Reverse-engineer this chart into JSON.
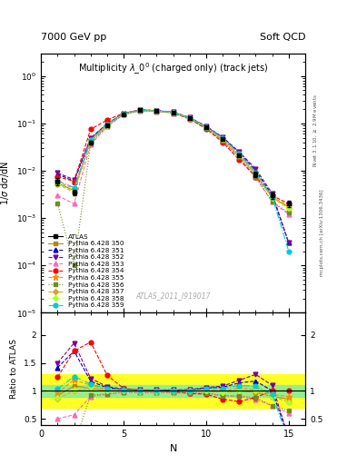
{
  "title_top": "7000 GeV pp",
  "title_right": "Soft QCD",
  "main_title": "Multiplicity $\\lambda\\_0^0$ (charged only) (track jets)",
  "ylabel_main": "1/$\\sigma$ d$\\sigma$/dN",
  "ylabel_ratio": "Ratio to ATLAS",
  "xlabel": "N",
  "watermark": "ATLAS_2011_I919017",
  "right_label": "mcplots.cern.ch [arXiv:1306.3436]",
  "right_label2": "Rivet 3.1.10, $\\geq$ 2.9M events",
  "xlim": [
    0.5,
    16
  ],
  "ylim_main": [
    1e-05,
    3
  ],
  "ylim_ratio": [
    0.38,
    2.4
  ],
  "N_values": [
    1,
    2,
    3,
    4,
    5,
    6,
    7,
    8,
    9,
    10,
    11,
    12,
    13,
    14,
    15
  ],
  "atlas_data": {
    "label": "ATLAS",
    "color": "black",
    "marker": "s",
    "y": [
      0.006,
      0.0035,
      0.04,
      0.092,
      0.158,
      0.19,
      0.185,
      0.17,
      0.13,
      0.082,
      0.047,
      0.021,
      0.0085,
      0.003,
      0.002
    ],
    "yerr": [
      0.001,
      0.0005,
      0.003,
      0.005,
      0.007,
      0.008,
      0.008,
      0.007,
      0.006,
      0.004,
      0.003,
      0.002,
      0.001,
      0.0005,
      0.0003
    ]
  },
  "series": [
    {
      "label": "Pythia 6.428 350",
      "color": "#b8860b",
      "linestyle": "-",
      "marker": "s",
      "markersize": 3.5,
      "y": [
        0.0055,
        0.0038,
        0.042,
        0.093,
        0.159,
        0.189,
        0.184,
        0.169,
        0.129,
        0.082,
        0.046,
        0.021,
        0.0083,
        0.0027,
        0.0017
      ]
    },
    {
      "label": "Pythia 6.428 351",
      "color": "#0000cd",
      "linestyle": "--",
      "marker": "^",
      "markersize": 3.5,
      "y": [
        0.0085,
        0.006,
        0.047,
        0.097,
        0.162,
        0.192,
        0.187,
        0.172,
        0.132,
        0.086,
        0.05,
        0.024,
        0.01,
        0.003,
        0.0003
      ]
    },
    {
      "label": "Pythia 6.428 352",
      "color": "#7b0099",
      "linestyle": "--",
      "marker": "v",
      "markersize": 3.5,
      "y": [
        0.009,
        0.0065,
        0.049,
        0.099,
        0.163,
        0.193,
        0.188,
        0.173,
        0.133,
        0.087,
        0.051,
        0.025,
        0.011,
        0.0033,
        0.0003
      ]
    },
    {
      "label": "Pythia 6.428 353",
      "color": "#ff69b4",
      "linestyle": "--",
      "marker": "^",
      "markersize": 3.5,
      "y": [
        0.003,
        0.002,
        0.036,
        0.086,
        0.154,
        0.184,
        0.18,
        0.165,
        0.125,
        0.078,
        0.043,
        0.019,
        0.0072,
        0.0022,
        0.0012
      ]
    },
    {
      "label": "Pythia 6.428 354",
      "color": "#ff0000",
      "linestyle": "--",
      "marker": "o",
      "markersize": 3.5,
      "y": [
        0.0075,
        0.006,
        0.075,
        0.118,
        0.165,
        0.192,
        0.185,
        0.168,
        0.124,
        0.077,
        0.04,
        0.017,
        0.0075,
        0.003,
        0.002
      ]
    },
    {
      "label": "Pythia 6.428 355",
      "color": "#ff8c00",
      "linestyle": "--",
      "marker": "*",
      "markersize": 4.5,
      "y": [
        0.0058,
        0.0042,
        0.044,
        0.094,
        0.16,
        0.19,
        0.185,
        0.17,
        0.13,
        0.083,
        0.047,
        0.022,
        0.0087,
        0.0028,
        0.0018
      ]
    },
    {
      "label": "Pythia 6.428 356",
      "color": "#6b8e23",
      "linestyle": ":",
      "marker": "s",
      "markersize": 3.5,
      "y": [
        0.002,
        0.0001,
        0.037,
        0.087,
        0.155,
        0.184,
        0.18,
        0.165,
        0.125,
        0.079,
        0.043,
        0.019,
        0.0075,
        0.0022,
        0.0013
      ]
    },
    {
      "label": "Pythia 6.428 357",
      "color": "#daa520",
      "linestyle": "--",
      "marker": "D",
      "markersize": 3,
      "y": [
        0.0052,
        0.0035,
        0.042,
        0.092,
        0.159,
        0.189,
        0.184,
        0.169,
        0.129,
        0.082,
        0.046,
        0.021,
        0.0084,
        0.0027,
        0.0016
      ]
    },
    {
      "label": "Pythia 6.428 358",
      "color": "#adff2f",
      "linestyle": ":",
      "marker": "D",
      "markersize": 3,
      "y": [
        0.0053,
        0.0036,
        0.043,
        0.093,
        0.16,
        0.189,
        0.184,
        0.17,
        0.13,
        0.083,
        0.046,
        0.021,
        0.0085,
        0.0027,
        0.0016
      ]
    },
    {
      "label": "Pythia 6.428 359",
      "color": "#00ced1",
      "linestyle": "-.",
      "marker": "o",
      "markersize": 3.5,
      "y": [
        0.0062,
        0.0044,
        0.045,
        0.095,
        0.161,
        0.191,
        0.186,
        0.171,
        0.131,
        0.085,
        0.049,
        0.023,
        0.0092,
        0.0028,
        0.0002
      ]
    }
  ],
  "ratio_band_green": 0.1,
  "ratio_band_yellow": 0.3
}
